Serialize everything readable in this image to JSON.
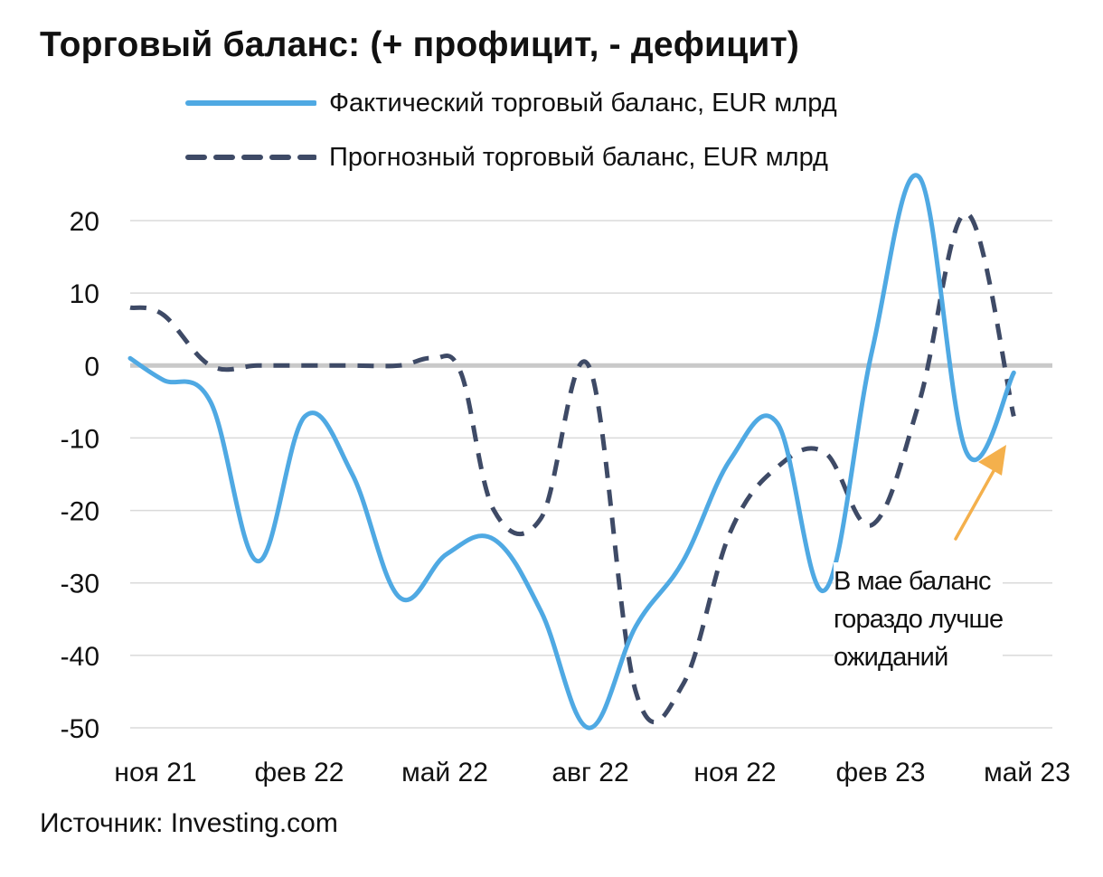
{
  "title": "Торговый баланс: (+ профицит, - дефицит)",
  "source": "Источник: Investing.com",
  "annotation": {
    "lines": [
      "В мае баланс",
      "гораздо лучше",
      "ожиданий"
    ],
    "arrow_color": "#F4B04C"
  },
  "chart_data": {
    "type": "line",
    "title": "Торговый баланс: (+ профицит, - дефицит)",
    "xlabel": "",
    "ylabel": "",
    "ylim": [
      -50,
      25
    ],
    "yticks": [
      20,
      10,
      0,
      -10,
      -20,
      -30,
      -40,
      -50
    ],
    "xtick_labels": [
      "ноя 21",
      "фев 22",
      "май 22",
      "авг 22",
      "ноя 22",
      "фев 23",
      "май 23"
    ],
    "xlim": [
      -0.7,
      18.3
    ],
    "grid": true,
    "zero_line": true,
    "legend_position": "top",
    "series": [
      {
        "name": "Фактический торговый баланс, EUR млрд",
        "color": "#4FA9E3",
        "style": "solid",
        "points": [
          [
            -0.7,
            1
          ],
          [
            0,
            -2
          ],
          [
            1,
            -5
          ],
          [
            2,
            -27
          ],
          [
            3,
            -7
          ],
          [
            4,
            -15
          ],
          [
            5,
            -32
          ],
          [
            6,
            -26
          ],
          [
            7,
            -24
          ],
          [
            8,
            -34
          ],
          [
            9,
            -50
          ],
          [
            10,
            -36
          ],
          [
            11,
            -27
          ],
          [
            12,
            -13
          ],
          [
            13,
            -8
          ],
          [
            14,
            -31
          ],
          [
            15,
            2
          ],
          [
            16,
            26
          ],
          [
            17,
            -12
          ],
          [
            18,
            -1
          ]
        ]
      },
      {
        "name": "Прогнозный торговый баланс, EUR млрд",
        "color": "#3E4A66",
        "style": "dashed",
        "points": [
          [
            -0.7,
            8
          ],
          [
            0,
            7
          ],
          [
            1,
            0
          ],
          [
            2,
            0
          ],
          [
            3,
            0
          ],
          [
            4,
            0
          ],
          [
            5,
            0
          ],
          [
            5.7,
            1
          ],
          [
            6.3,
            -1
          ],
          [
            7,
            -20
          ],
          [
            8,
            -21
          ],
          [
            9,
            0
          ],
          [
            10,
            -45
          ],
          [
            11,
            -44
          ],
          [
            12,
            -23
          ],
          [
            13,
            -14
          ],
          [
            14,
            -12
          ],
          [
            15,
            -22
          ],
          [
            16,
            -5
          ],
          [
            17,
            21
          ],
          [
            18,
            -7
          ]
        ]
      }
    ]
  }
}
